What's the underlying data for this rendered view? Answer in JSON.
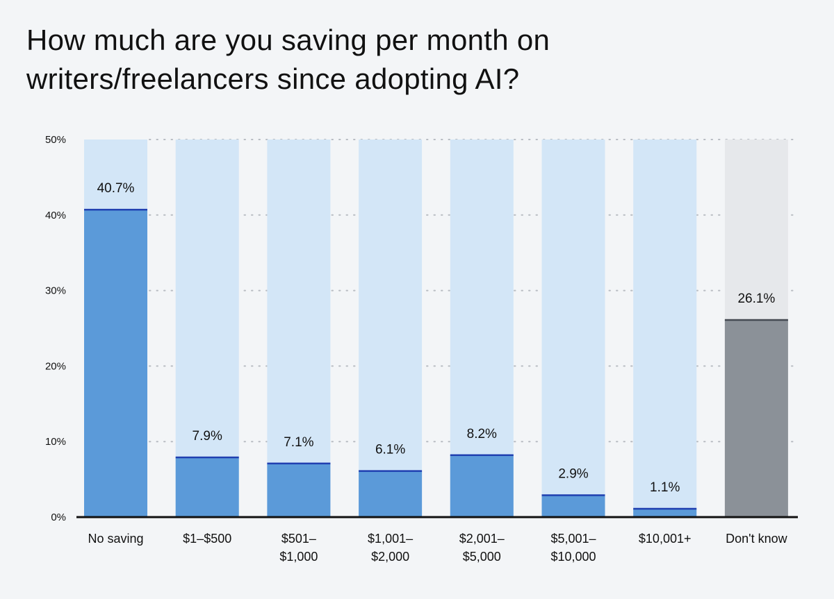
{
  "title": {
    "line1": "How much are you saving per month on",
    "line2": "writers/freelancers since adopting AI?"
  },
  "colors": {
    "background": "#f3f5f7",
    "bar_track": "#d3e6f7",
    "bar_fill": "#5b9ad9",
    "bar_edge": "#1f3fb0",
    "dont_know_track": "#e6e8eb",
    "dont_know_fill": "#8b9198",
    "dont_know_edge": "#444a52",
    "grid": "#b8bcc2",
    "axis": "#111111"
  },
  "chart_data": {
    "type": "bar",
    "categories": [
      [
        "No saving"
      ],
      [
        "$1–$500"
      ],
      [
        "$501–",
        "$1,000"
      ],
      [
        "$1,001–",
        "$2,000"
      ],
      [
        "$2,001–",
        "$5,000"
      ],
      [
        "$5,001–",
        "$10,000"
      ],
      [
        "$10,001+"
      ],
      [
        "Don't know"
      ]
    ],
    "values": [
      40.7,
      7.9,
      7.1,
      6.1,
      8.2,
      2.9,
      1.1,
      26.1
    ],
    "value_labels": [
      "40.7%",
      "7.9%",
      "7.1%",
      "6.1%",
      "8.2%",
      "2.9%",
      "1.1%",
      "26.1%"
    ],
    "highlight_gray": [
      7
    ],
    "yticks": [
      0,
      10,
      20,
      30,
      40,
      50
    ],
    "ytick_labels": [
      "0%",
      "10%",
      "20%",
      "30%",
      "40%",
      "50%"
    ],
    "ylim": [
      0,
      50
    ],
    "grid": "dotted horizontal",
    "legend": "none"
  }
}
